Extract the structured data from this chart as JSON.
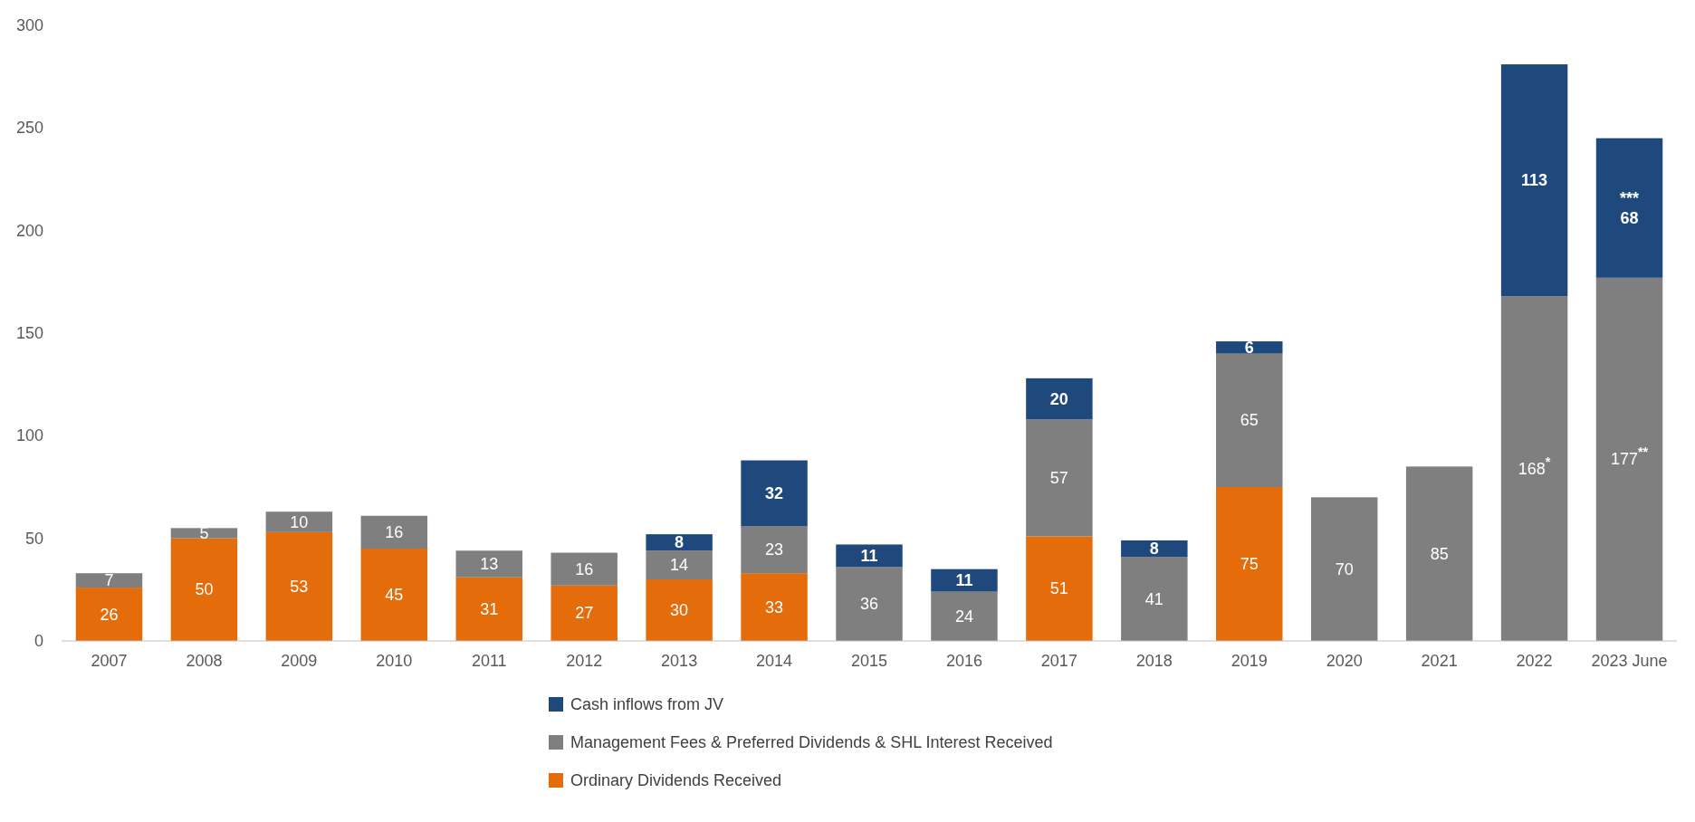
{
  "chart_data": {
    "type": "bar",
    "stacked": true,
    "categories": [
      "2007",
      "2008",
      "2009",
      "2010",
      "2011",
      "2012",
      "2013",
      "2014",
      "2015",
      "2016",
      "2017",
      "2018",
      "2019",
      "2020",
      "2021",
      "2022",
      "2023 June"
    ],
    "series": [
      {
        "name": "Ordinary Dividends Received",
        "color": "#e46c0a",
        "values": [
          26,
          50,
          53,
          45,
          31,
          27,
          30,
          33,
          null,
          null,
          51,
          null,
          75,
          null,
          null,
          null,
          null
        ],
        "value_labels": [
          "26",
          "50",
          "53",
          "45",
          "31",
          "27",
          "30",
          "33",
          null,
          null,
          "51",
          null,
          "75",
          null,
          null,
          null,
          null
        ]
      },
      {
        "name": "Management Fees & Preferred Dividends & SHL Interest Received",
        "color": "#7f7f7f",
        "values": [
          7,
          5,
          10,
          16,
          13,
          16,
          14,
          23,
          36,
          24,
          57,
          41,
          65,
          70,
          85,
          168,
          177
        ],
        "value_labels": [
          "7",
          "5",
          "10",
          "16",
          "13",
          "16",
          "14",
          "23",
          "36",
          "24",
          "57",
          "41",
          "65",
          "70",
          "85",
          "168$^{*}$",
          "177$^{**}$"
        ]
      },
      {
        "name": "Cash inflows from JV",
        "color": "#1f497d",
        "values": [
          null,
          null,
          null,
          null,
          null,
          null,
          8,
          32,
          11,
          11,
          20,
          8,
          6,
          null,
          null,
          113,
          68
        ],
        "value_labels": [
          null,
          null,
          null,
          null,
          null,
          null,
          "8",
          "32",
          "11",
          "11",
          "20",
          "8",
          "6",
          null,
          null,
          "113",
          "***\n68"
        ]
      }
    ],
    "ylim": [
      0,
      300
    ],
    "yticks": [
      0,
      50,
      100,
      150,
      200,
      250,
      300
    ],
    "grid": false,
    "legend": "bottom"
  }
}
